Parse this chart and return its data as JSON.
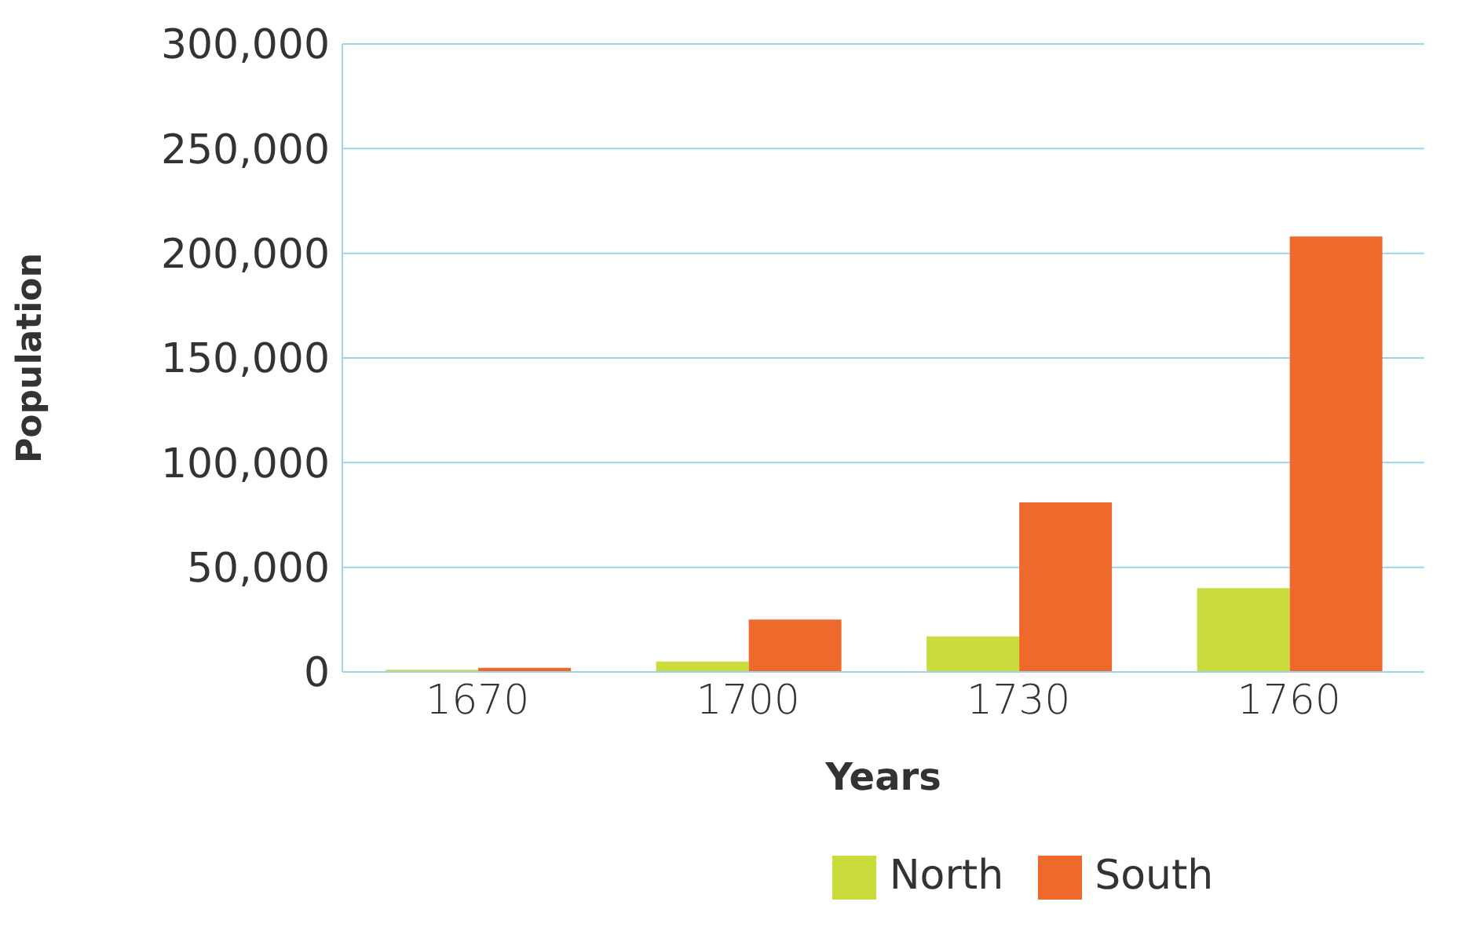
{
  "chart_data": {
    "type": "bar",
    "xlabel": "Years",
    "ylabel": "Population",
    "categories": [
      "1670",
      "1700",
      "1730",
      "1760"
    ],
    "series": [
      {
        "name": "North",
        "color": "#c9dc3c",
        "values": [
          1000,
          5000,
          17000,
          40000
        ]
      },
      {
        "name": "South",
        "color": "#ed6a2c",
        "values": [
          2000,
          25000,
          81000,
          208000
        ]
      }
    ],
    "ylim": [
      0,
      300000
    ],
    "yticks": [
      0,
      {
        "value": 50000,
        "label": "50,000"
      },
      {
        "value": 100000,
        "label": "100,000"
      },
      {
        "value": 150000,
        "label": "150,000"
      },
      {
        "value": 200000,
        "label": "200,000"
      },
      {
        "value": 250000,
        "label": "250,000"
      },
      {
        "value": 300000,
        "label": "300,000"
      }
    ],
    "grid": "y",
    "legend": "bottom"
  }
}
